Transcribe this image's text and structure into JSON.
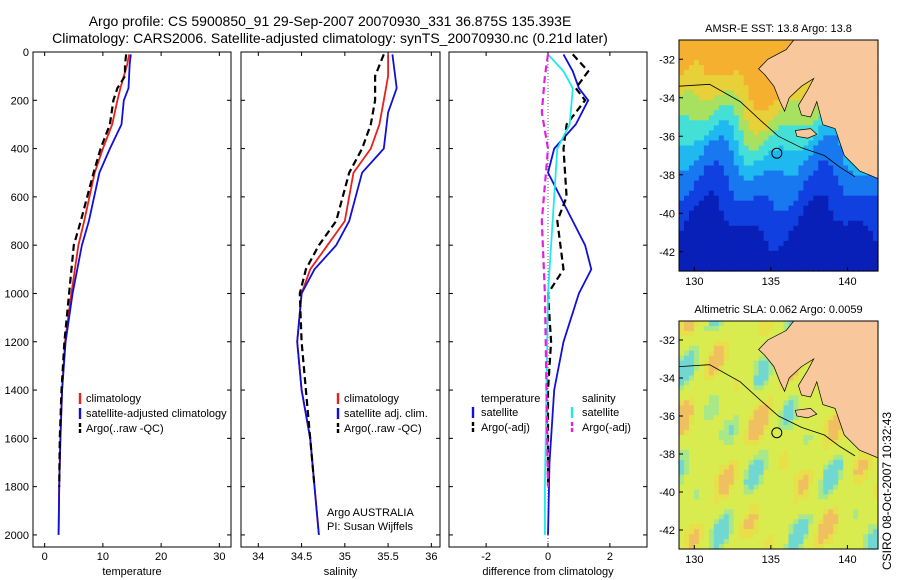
{
  "figure": {
    "title_line1": "Argo profile: CS 5900850_91 29-Sep-2007 20070930_331 36.875S 135.393E",
    "title_line2": "Climatology: CARS2006. Satellite-adjusted climatology: synTS_20070930.nc (0.21d later)",
    "credit": "CSIRO 08-Oct-2007 10:32:43"
  },
  "colors": {
    "red": "#e8211d",
    "blue": "#1010d8",
    "cyan": "#22e8e8",
    "magenta": "#e020e0",
    "black": "#000000",
    "land": "#f8c89c"
  },
  "chart_data": [
    {
      "type": "line",
      "xlabel": "temperature",
      "ylabel": "",
      "xlim": [
        -2,
        32
      ],
      "ylim": [
        2050,
        0
      ],
      "y_reversed": true,
      "xticks": [
        0,
        10,
        20,
        30
      ],
      "yticks": [
        0,
        200,
        400,
        600,
        800,
        1000,
        1200,
        1400,
        1600,
        1800,
        2000
      ],
      "legend": [
        "climatology",
        "satellite-adjusted climatology",
        "Argo(..raw -QC)"
      ],
      "series": [
        {
          "name": "climatology",
          "color": "red",
          "dash": "solid",
          "x": [
            14.5,
            14.2,
            13.6,
            13.0,
            12.5,
            11.6,
            10.0,
            8.6,
            6.8,
            5.8,
            4.6,
            3.5,
            3.0,
            2.7,
            2.5,
            2.4
          ],
          "y": [
            10,
            50,
            100,
            150,
            200,
            300,
            400,
            500,
            700,
            800,
            1000,
            1200,
            1400,
            1600,
            1800,
            2000
          ]
        },
        {
          "name": "satellite-adjusted climatology",
          "color": "blue",
          "dash": "solid",
          "x": [
            14.8,
            14.6,
            14.5,
            14.4,
            13.6,
            13.2,
            11.2,
            9.4,
            7.6,
            6.4,
            4.8,
            3.6,
            3.0,
            2.7,
            2.5,
            2.4
          ],
          "y": [
            10,
            50,
            100,
            150,
            200,
            300,
            400,
            500,
            700,
            800,
            1000,
            1200,
            1400,
            1600,
            1800,
            2000
          ]
        },
        {
          "name": "Argo(..raw -QC)",
          "color": "black",
          "dash": "dashed",
          "x": [
            14.0,
            13.8,
            13.8,
            12.5,
            11.8,
            11.2,
            9.6,
            8.4,
            6.2,
            5.0,
            4.2,
            3.4,
            2.9,
            2.6,
            2.5
          ],
          "y": [
            10,
            50,
            100,
            150,
            200,
            300,
            400,
            500,
            700,
            800,
            1000,
            1200,
            1400,
            1600,
            1800
          ]
        }
      ]
    },
    {
      "type": "line",
      "xlabel": "salinity",
      "ylabel": "",
      "xlim": [
        33.8,
        36.1
      ],
      "ylim": [
        2050,
        0
      ],
      "y_reversed": true,
      "xticks": [
        34,
        34.5,
        35,
        35.5,
        36
      ],
      "legend": [
        "climatology",
        "satellite adj. clim.",
        "Argo(..raw -QC)"
      ],
      "annotations": [
        "Argo AUSTRALIA",
        "PI: Susan Wijffels"
      ],
      "series": [
        {
          "name": "climatology",
          "color": "red",
          "dash": "solid",
          "x": [
            35.5,
            35.5,
            35.45,
            35.4,
            35.3,
            35.1,
            35.0,
            34.8,
            34.6,
            34.5,
            34.45,
            34.5,
            34.6,
            34.65,
            34.7
          ],
          "y": [
            10,
            100,
            200,
            300,
            400,
            500,
            700,
            800,
            900,
            1000,
            1200,
            1400,
            1600,
            1800,
            2000
          ]
        },
        {
          "name": "satellite adj. clim.",
          "color": "blue",
          "dash": "solid",
          "x": [
            35.55,
            35.6,
            35.5,
            35.45,
            35.2,
            35.05,
            34.9,
            34.65,
            34.5,
            34.45,
            34.5,
            34.6,
            34.65,
            34.7
          ],
          "y": [
            10,
            150,
            250,
            400,
            500,
            700,
            800,
            900,
            1000,
            1200,
            1400,
            1600,
            1800,
            2000
          ]
        },
        {
          "name": "Argo(..raw -QC)",
          "color": "black",
          "dash": "dashed",
          "x": [
            35.45,
            35.35,
            35.35,
            35.3,
            35.2,
            35.05,
            34.9,
            34.7,
            34.55,
            34.48,
            34.5,
            34.55,
            34.6,
            34.65
          ],
          "y": [
            10,
            100,
            200,
            300,
            400,
            500,
            700,
            800,
            900,
            1000,
            1200,
            1400,
            1600,
            1800
          ]
        }
      ]
    },
    {
      "type": "line",
      "xlabel": "difference from climatology",
      "ylabel": "",
      "xlim": [
        -3.2,
        3.2
      ],
      "ylim": [
        2050,
        0
      ],
      "y_reversed": true,
      "xticks": [
        -2,
        0,
        2
      ],
      "legend_groups": [
        {
          "title": "temperature",
          "entries": [
            "satellite",
            "Argo(-adj)"
          ]
        },
        {
          "title": "salinity",
          "entries": [
            "satellite",
            "Argo(-adj)"
          ]
        }
      ],
      "series": [
        {
          "name": "temperature satellite",
          "color": "blue",
          "dash": "solid",
          "x": [
            0.5,
            0.8,
            1.0,
            1.3,
            0.9,
            0.2,
            0.0,
            0.4,
            1.2,
            1.4,
            1.0,
            0.5,
            0.2,
            0.05,
            0.0
          ],
          "y": [
            10,
            80,
            150,
            200,
            300,
            400,
            500,
            600,
            800,
            900,
            1000,
            1200,
            1400,
            1700,
            2000
          ]
        },
        {
          "name": "temperature Argo(-adj)",
          "color": "black",
          "dash": "dashed",
          "x": [
            0.8,
            1.3,
            0.9,
            1.2,
            0.6,
            0.5,
            0.6,
            0.3,
            0.5,
            0.0,
            0.1,
            0.0,
            0.0
          ],
          "y": [
            10,
            80,
            150,
            200,
            300,
            400,
            600,
            700,
            900,
            1000,
            1200,
            1400,
            1800
          ]
        },
        {
          "name": "salinity satellite",
          "color": "cyan",
          "dash": "solid",
          "x": [
            0.0,
            0.5,
            0.8,
            0.7,
            0.3,
            0.2,
            0.1,
            0.0,
            -0.05,
            -0.1,
            -0.1
          ],
          "y": [
            10,
            80,
            150,
            300,
            400,
            600,
            800,
            1000,
            1400,
            1800,
            2000
          ]
        },
        {
          "name": "salinity Argo(-adj)",
          "color": "magenta",
          "dash": "dashed",
          "x": [
            0.0,
            -0.1,
            -0.2,
            0.0,
            -0.2,
            -0.1,
            -0.05,
            0.0
          ],
          "y": [
            10,
            100,
            250,
            400,
            700,
            1000,
            1400,
            1800
          ]
        }
      ]
    },
    {
      "type": "heatmap",
      "title": "AMSR-E SST: 13.8 Argo: 13.8",
      "xlim": [
        129,
        142
      ],
      "ylim": [
        -43,
        -31
      ],
      "xticks": [
        130,
        135,
        140
      ],
      "yticks": [
        -32,
        -34,
        -36,
        -38,
        -40,
        -42
      ],
      "marker": {
        "x": 135.39,
        "y": -36.88
      }
    },
    {
      "type": "heatmap",
      "title": "Altimetric SLA: 0.062 Argo: 0.0059",
      "xlim": [
        129,
        142
      ],
      "ylim": [
        -43,
        -31
      ],
      "xticks": [
        130,
        135,
        140
      ],
      "yticks": [
        -32,
        -34,
        -36,
        -38,
        -40,
        -42
      ],
      "marker": {
        "x": 135.39,
        "y": -36.88
      }
    }
  ]
}
